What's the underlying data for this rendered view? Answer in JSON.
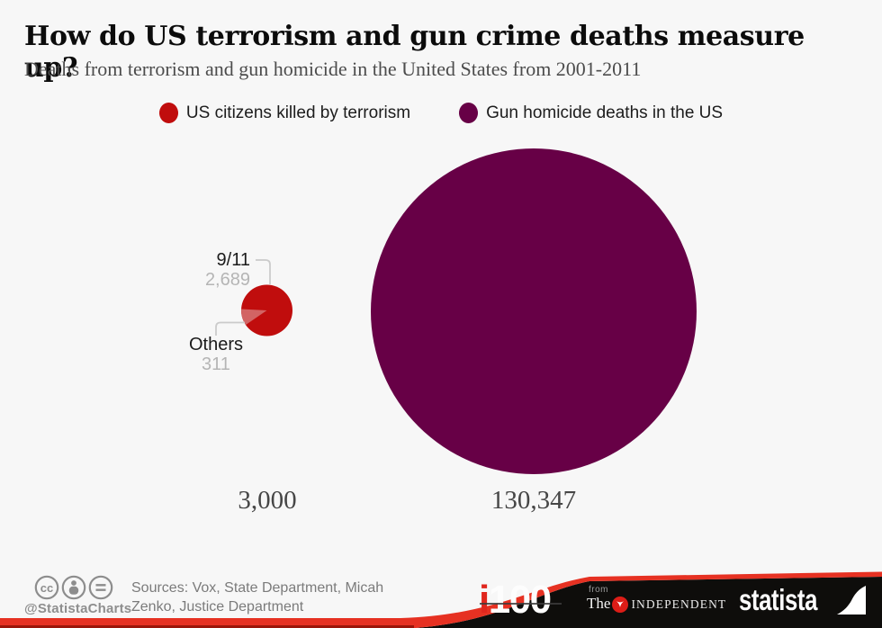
{
  "chart_data": {
    "type": "pie",
    "title": "How do US terrorism and gun crime deaths measure up?",
    "subtitle": "Deaths from terrorism and gun homicide in the United States from 2001-2011",
    "layout": "two circles with areas proportional to totals; left circle is a pie with two slices",
    "legend_position": "top-center",
    "series": [
      {
        "name": "US citizens killed by terrorism",
        "total": 3000,
        "total_label": "3,000",
        "color": "#c00d0d",
        "slices": [
          {
            "label": "9/11",
            "value": 2689,
            "value_label": "2,689",
            "color": "#c00d0d"
          },
          {
            "label": "Others",
            "value": 311,
            "value_label": "311",
            "color": "#d26464"
          }
        ]
      },
      {
        "name": "Gun homicide deaths in the US",
        "total": 130347,
        "total_label": "130,347",
        "color": "#670046",
        "slices": []
      }
    ]
  },
  "footer": {
    "handle": "@StatistaCharts",
    "license_icons": [
      "cc-icon",
      "attribution-person-icon",
      "equals-icon"
    ],
    "sources_line1": "Sources: Vox, State Department, Micah",
    "sources_line2": "Zenko, Justice Department",
    "i100": {
      "i": "i",
      "number": "100"
    },
    "independent": {
      "from": "from",
      "the": "The",
      "name": "INDEPENDENT"
    },
    "statista": "statista"
  },
  "colors": {
    "background": "#f7f7f7",
    "terrorism_red": "#c00d0d",
    "others_slice_red": "#d26464",
    "gun_purple": "#670046",
    "ribbon_red": "#e63122",
    "bar_black": "#0e0d0b",
    "muted_value_gray": "#b5b5b5",
    "connector_gray": "#cbcbcb"
  }
}
